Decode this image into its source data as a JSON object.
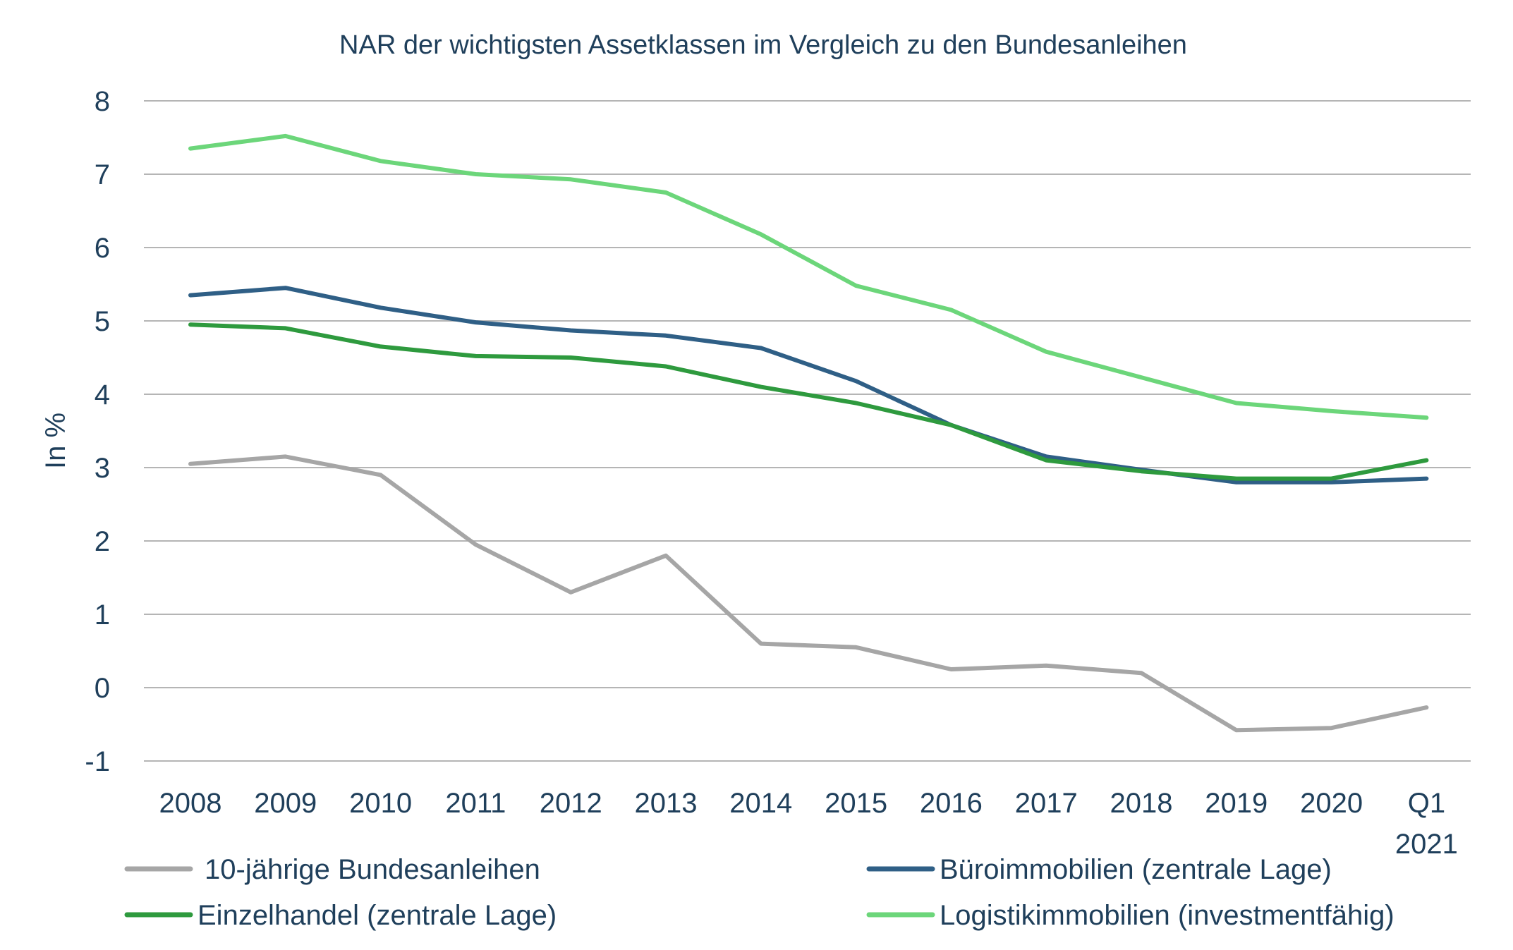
{
  "chart_data": {
    "type": "line",
    "title": "NAR der wichtigsten Assetklassen im Vergleich zu den Bundesanleihen",
    "xlabel": "",
    "ylabel": "In %",
    "ylim": [
      -1,
      8
    ],
    "yticks": [
      "8",
      "7",
      "6",
      "5",
      "4",
      "3",
      "2",
      "1",
      "0",
      "-1"
    ],
    "ytick_values": [
      8,
      7,
      6,
      5,
      4,
      3,
      2,
      1,
      0,
      -1
    ],
    "grid": true,
    "legend_position": "bottom",
    "categories": [
      "2008",
      "2009",
      "2010",
      "2011",
      "2012",
      "2013",
      "2014",
      "2015",
      "2016",
      "2017",
      "2018",
      "2019",
      "2020",
      "Q1 2021"
    ],
    "category_lines": [
      [
        "2008"
      ],
      [
        "2009"
      ],
      [
        "2010"
      ],
      [
        "2011"
      ],
      [
        "2012"
      ],
      [
        "2013"
      ],
      [
        "2014"
      ],
      [
        "2015"
      ],
      [
        "2016"
      ],
      [
        "2017"
      ],
      [
        "2018"
      ],
      [
        "2019"
      ],
      [
        "2020"
      ],
      [
        "Q1",
        "2021"
      ]
    ],
    "series": [
      {
        "name": "10-jährige Bundesanleihen",
        "color": "#a6a6a6",
        "values": [
          3.05,
          3.15,
          2.9,
          1.95,
          1.3,
          1.8,
          0.6,
          0.55,
          0.25,
          0.3,
          0.2,
          -0.58,
          -0.55,
          -0.27
        ]
      },
      {
        "name": "Büroimmobilien (zentrale Lage)",
        "color": "#2f5f86",
        "values": [
          5.35,
          5.45,
          5.18,
          4.98,
          4.87,
          4.8,
          4.63,
          4.18,
          3.58,
          3.15,
          2.97,
          2.8,
          2.8,
          2.85
        ]
      },
      {
        "name": "Einzelhandel (zentrale Lage)",
        "color": "#2e9a3e",
        "values": [
          4.95,
          4.9,
          4.65,
          4.52,
          4.5,
          4.38,
          4.1,
          3.88,
          3.58,
          3.1,
          2.95,
          2.85,
          2.85,
          3.1
        ]
      },
      {
        "name": "Logistikimmobilien (investmentfähig)",
        "color": "#6cd67a",
        "values": [
          7.35,
          7.52,
          7.18,
          7.0,
          6.93,
          6.75,
          6.18,
          5.48,
          5.15,
          4.58,
          4.23,
          3.88,
          3.77,
          3.68
        ]
      }
    ]
  }
}
